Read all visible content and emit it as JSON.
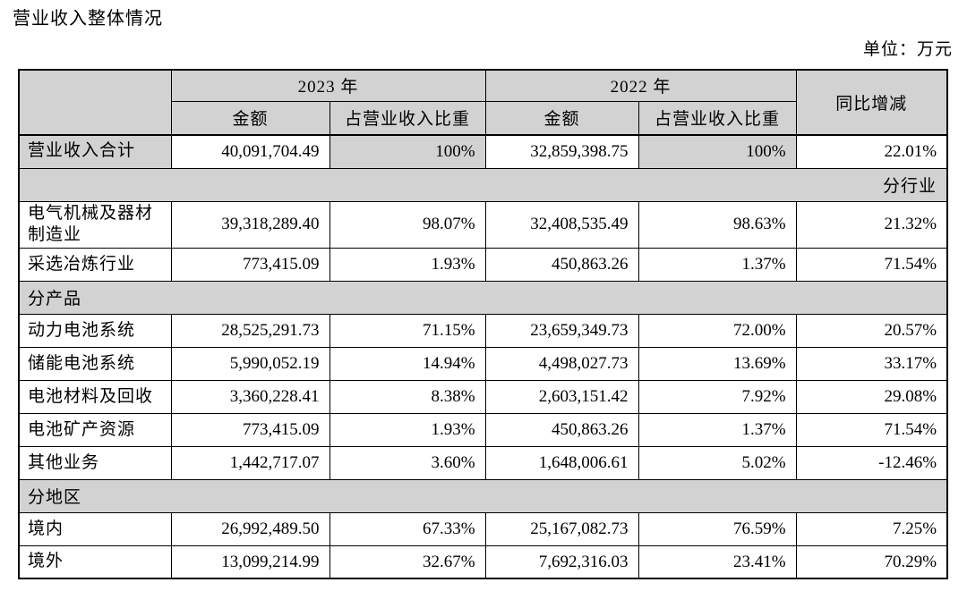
{
  "page": {
    "title": "营业收入整体情况",
    "unit_label": "单位：万元"
  },
  "table": {
    "header": {
      "corner": "",
      "year_2023": "2023 年",
      "year_2022": "2022 年",
      "yoy_change": "同比增减",
      "amount": "金额",
      "pct_of_revenue": "占营业收入比重"
    },
    "rows": [
      {
        "type": "data",
        "highlight": true,
        "label": "营业收入合计",
        "values": [
          "40,091,704.49",
          "100%",
          "32,859,398.75",
          "100%",
          "22.01%"
        ]
      },
      {
        "type": "section",
        "align": "right",
        "label": "分行业"
      },
      {
        "type": "data",
        "highlight": false,
        "label": "电气机械及器材\n制造业",
        "values": [
          "39,318,289.40",
          "98.07%",
          "32,408,535.49",
          "98.63%",
          "21.32%"
        ]
      },
      {
        "type": "data",
        "highlight": false,
        "label": "采选冶炼行业",
        "values": [
          "773,415.09",
          "1.93%",
          "450,863.26",
          "1.37%",
          "71.54%"
        ]
      },
      {
        "type": "section",
        "align": "left",
        "label": "分产品"
      },
      {
        "type": "data",
        "highlight": false,
        "label": "动力电池系统",
        "values": [
          "28,525,291.73",
          "71.15%",
          "23,659,349.73",
          "72.00%",
          "20.57%"
        ]
      },
      {
        "type": "data",
        "highlight": false,
        "label": "储能电池系统",
        "values": [
          "5,990,052.19",
          "14.94%",
          "4,498,027.73",
          "13.69%",
          "33.17%"
        ]
      },
      {
        "type": "data",
        "highlight": false,
        "label": "电池材料及回收",
        "values": [
          "3,360,228.41",
          "8.38%",
          "2,603,151.42",
          "7.92%",
          "29.08%"
        ]
      },
      {
        "type": "data",
        "highlight": false,
        "label": "电池矿产资源",
        "values": [
          "773,415.09",
          "1.93%",
          "450,863.26",
          "1.37%",
          "71.54%"
        ]
      },
      {
        "type": "data",
        "highlight": false,
        "label": "其他业务",
        "values": [
          "1,442,717.07",
          "3.60%",
          "1,648,006.61",
          "5.02%",
          "-12.46%"
        ]
      },
      {
        "type": "section",
        "align": "left",
        "label": "分地区"
      },
      {
        "type": "data",
        "highlight": false,
        "label": "境内",
        "values": [
          "26,992,489.50",
          "67.33%",
          "25,167,082.73",
          "76.59%",
          "7.25%"
        ]
      },
      {
        "type": "data",
        "highlight": false,
        "label": "境外",
        "values": [
          "13,099,214.99",
          "32.67%",
          "7,692,316.03",
          "23.41%",
          "70.29%"
        ]
      }
    ]
  }
}
